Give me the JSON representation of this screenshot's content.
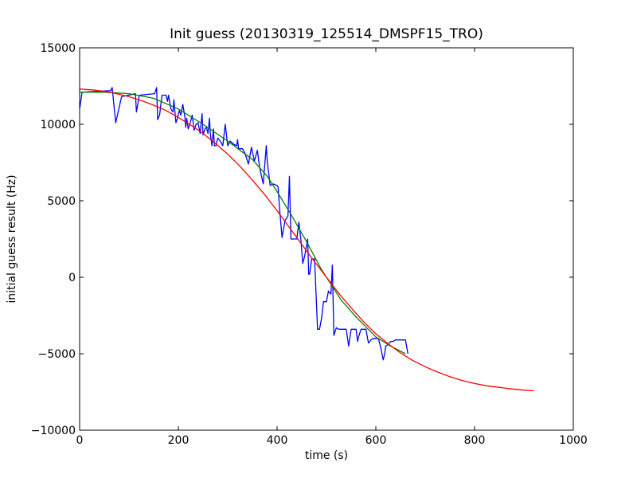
{
  "chart_data": {
    "type": "line",
    "title": "Init guess (20130319_125514_DMSPF15_TRO)",
    "xlabel": "time (s)",
    "ylabel": "initial guess result (Hz)",
    "xlim": [
      0,
      1000
    ],
    "ylim": [
      -10000,
      15000
    ],
    "xticks": [
      0,
      200,
      400,
      600,
      800,
      1000
    ],
    "yticks": [
      -10000,
      -5000,
      0,
      5000,
      10000,
      15000
    ],
    "xtick_labels": [
      "0",
      "200",
      "400",
      "600",
      "800",
      "1000"
    ],
    "ytick_labels": [
      "−10000",
      "−5000",
      "0",
      "5000",
      "10000",
      "15000"
    ],
    "grid": false,
    "series": [
      {
        "color": "#0000ff",
        "x": [
          0,
          5,
          63,
          66,
          73,
          85,
          113,
          115,
          121,
          152,
          156,
          158,
          162,
          167,
          171,
          175,
          178,
          180,
          185,
          189,
          191,
          195,
          198,
          202,
          205,
          209,
          213,
          215,
          217,
          220,
          225,
          228,
          232,
          236,
          240,
          244,
          248,
          250,
          254,
          257,
          260,
          263,
          265,
          268,
          271,
          273,
          276,
          280,
          285,
          290,
          295,
          300,
          305,
          312,
          318,
          320,
          322,
          325,
          330,
          335,
          342,
          348,
          354,
          360,
          365,
          372,
          378,
          380,
          386,
          392,
          400,
          402,
          405,
          410,
          416,
          422,
          425,
          428,
          432,
          436,
          440,
          444,
          448,
          452,
          456,
          462,
          464,
          466,
          470,
          476,
          482,
          486,
          490,
          494,
          496,
          500,
          504,
          506,
          509,
          512,
          515,
          520,
          525,
          530,
          535,
          540,
          545,
          550,
          555,
          560,
          563,
          565,
          570,
          575,
          580,
          585,
          590,
          595,
          600,
          605,
          610,
          615,
          618,
          620,
          625,
          630,
          635,
          640,
          645,
          650,
          655,
          660,
          665
        ],
        "y": [
          11000,
          12100,
          12200,
          12400,
          10100,
          11800,
          12000,
          10800,
          11900,
          12000,
          12400,
          10300,
          10600,
          11900,
          11900,
          11900,
          11500,
          11900,
          11000,
          10800,
          11600,
          10100,
          10400,
          10900,
          10600,
          11300,
          10500,
          9800,
          10400,
          9700,
          10200,
          10600,
          9600,
          10000,
          10100,
          9400,
          10700,
          9300,
          9700,
          9800,
          9400,
          10400,
          9300,
          8600,
          9700,
          8600,
          8600,
          9100,
          8900,
          8600,
          10000,
          8600,
          8900,
          8700,
          8600,
          9000,
          8400,
          8400,
          8400,
          8100,
          7400,
          8500,
          7600,
          8300,
          7100,
          6100,
          8600,
          7600,
          6000,
          6100,
          6000,
          5900,
          4500,
          2600,
          3700,
          4000,
          6600,
          2500,
          2500,
          2500,
          2500,
          3600,
          2500,
          900,
          1400,
          2500,
          200,
          200,
          1200,
          1200,
          -3400,
          -3400,
          -2700,
          -1600,
          -1600,
          -1600,
          -900,
          -1000,
          -1100,
          800,
          -3800,
          -3300,
          -3400,
          -3400,
          -3400,
          -3400,
          -4500,
          -3400,
          -3400,
          -3400,
          -4200,
          -3900,
          -3400,
          -3400,
          -3400,
          -4300,
          -4100,
          -4000,
          -4000,
          -4000,
          -4600,
          -5400,
          -5000,
          -4500,
          -4400,
          -4200,
          -4200,
          -4100,
          -4100,
          -4100,
          -4100,
          -4100,
          -5000
        ]
      },
      {
        "color": "#008000",
        "x": [
          0,
          50,
          100,
          150,
          200,
          250,
          300,
          350,
          380,
          400,
          430,
          460,
          490,
          510,
          530,
          560,
          600,
          630,
          660
        ],
        "y": [
          12100,
          12100,
          12000,
          11700,
          11000,
          10000,
          8900,
          7700,
          6600,
          5600,
          4000,
          2300,
          500,
          -500,
          -1500,
          -2600,
          -3900,
          -4500,
          -5000
        ]
      },
      {
        "color": "#ff0000",
        "x": [
          0,
          25,
          50,
          75,
          100,
          125,
          150,
          175,
          200,
          225,
          250,
          275,
          300,
          325,
          350,
          375,
          400,
          425,
          450,
          475,
          500,
          525,
          550,
          575,
          600,
          625,
          650,
          675,
          700,
          725,
          750,
          775,
          800,
          825,
          850,
          875,
          900,
          920
        ],
        "y": [
          12300,
          12250,
          12150,
          12000,
          11800,
          11550,
          11250,
          10900,
          10450,
          9950,
          9400,
          8750,
          8050,
          7250,
          6350,
          5400,
          4350,
          3250,
          2150,
          1050,
          0,
          -1050,
          -2000,
          -2900,
          -3700,
          -4350,
          -4950,
          -5450,
          -5850,
          -6200,
          -6500,
          -6750,
          -6950,
          -7100,
          -7200,
          -7300,
          -7380,
          -7420
        ]
      }
    ]
  }
}
